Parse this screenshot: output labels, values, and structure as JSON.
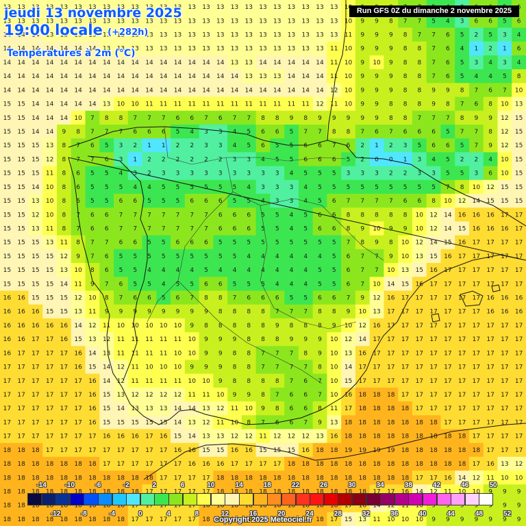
{
  "header": {
    "date": "jeudi 13 novembre 2025",
    "time": "19:00 locale",
    "offset": "(+282h)",
    "variable": "Températures à 2m (°C)",
    "run": "Run GFS 0Z du dimanche 2 novembre 2025"
  },
  "footer": {
    "copyright": "Copyright 2025 Meteociel.fr"
  },
  "legend": {
    "unit": "°C",
    "labels_top": [
      "-14",
      "-10",
      "-6",
      "-2",
      "2",
      "6",
      "10",
      "14",
      "18",
      "22",
      "26",
      "30",
      "34",
      "38",
      "42",
      "46",
      "50"
    ],
    "labels_bottom": [
      "-12",
      "-8",
      "-4",
      "0",
      "4",
      "8",
      "12",
      "16",
      "20",
      "24",
      "28",
      "32",
      "36",
      "40",
      "44",
      "48",
      "52"
    ],
    "colors": [
      "#0a0a40",
      "#0a1f6e",
      "#0a3296",
      "#0000c8",
      "#0050ff",
      "#0a8cff",
      "#1ec8ff",
      "#50e6ff",
      "#50f0a0",
      "#3ce650",
      "#8ce61e",
      "#c8f01e",
      "#ffff50",
      "#ffff96",
      "#fff5b4",
      "#ffdc32",
      "#ffb41e",
      "#ff8c1e",
      "#ff641e",
      "#ff321e",
      "#ff1414",
      "#e60000",
      "#b40000",
      "#8c0014",
      "#780032",
      "#960064",
      "#b4008c",
      "#d200b4",
      "#f01edc",
      "#ff64f0",
      "#ffa0ff",
      "#ffd2ff",
      "#ffffff"
    ]
  },
  "map": {
    "region": "Péninsule Ibérique",
    "value_grid": [
      "13 13 13 13 13 13 13 13 13 13 13 13 13 13 13 13 13 13 13 13 13 13 13 13 10 9 9 8 7 7 5 4 3 6 6 5 6",
      "13 13 13 13 13 13 13 13 13 13 13 13 13 13 13 13 13 13 13 13 13 13 13 13 10 9 9 8 7 7 5 4 3 6 6 5 6",
      "14 14 14 13 13 13 13 13 13 13 13 13 13 13 13 13 13 13 13 13 13 13 13 13 11 9 9 9 8 7 7 6 5 2 5 3 4",
      "14 14 14 14 14 14 14 13 13 13 13 13 13 13 13 13 13 13 13 13 13 13 13 11 10 9 9 9 8 8 7 6 4 1 2 1 6",
      "14 14 14 14 14 14 14 14 14 14 14 14 14 14 14 14 13 13 14 14 14 14 14 11 10 9 10 9 8 8 7 6 5 3 4 3 4",
      "14 14 14 14 14 14 14 14 14 14 14 14 14 14 14 14 14 13 13 13 14 14 14 11 10 9 9 9 8 8 7 6 5 4 4 5 8",
      "14 14 14 14 14 14 14 14 14 14 14 14 14 14 14 14 14 14 14 14 14 14 14 12 10 9 9 9 8 8 9 9 8 7 6 7 10",
      "15 15 14 14 14 14 14 13 10 10 11 11 11 11 11 11 11 11 11 11 11 11 12 11 10 9 9 8 8 8 9 8 7 6 8 10 13",
      "15 15 14 14 14 10 7 8 8 7 7 7 6 6 7 6 7 7 8 8 9 8 9 9 9 9 9 8 8 7 7 7 8 9 9 12 15",
      "15 15 14 14 9 8 7 7 7 6 6 6 5 4 3 3 4 5 6 6 5 7 7 8 8 7 6 7 6 6 6 5 7 7 8 12 15",
      "15 15 15 13 8 7 6 5 3 2 1 1 2 2 3 3 4 5 6 5 5 6 6 7 6 2 1 2 3 5 6 6 5 7 9 12 15",
      "15 15 15 12 8 7 7 6 3 1 2 2 2 2 2 2 3 3 4 5 5 6 6 6 5 2 0 0 1 3 4 5 2 2 4 10 15",
      "15 15 15 11 8 6 5 5 4 3 2 3 3 3 3 3 3 3 3 3 4 5 5 5 3 3 3 2 2 3 3 5 5 3 6 10 15",
      "15 15 14 10 8 6 5 5 5 4 4 5 5 5 5 5 5 4 3 3 3 4 5 5 5 5 5 5 5 5 5 7 8 10 12 15 15",
      "15 15 13 10 8 6 5 5 6 6 5 5 5 6 6 6 5 5 4 3 3 4 5 6 7 7 7 7 6 6 8 10 12 14 15 15 15",
      "15 15 12 10 8 7 6 6 7 7 7 7 7 7 7 6 6 6 5 5 4 5 6 6 8 8 8 8 8 10 12 14 16 16 16 17 17",
      "15 15 13 11 8 7 6 6 7 7 7 7 7 7 7 6 6 6 5 5 4 5 6 6 8 9 10 9 9 10 12 14 15 16 16 16 17",
      "15 15 15 13 11 8 7 7 6 6 5 5 6 6 6 5 5 5 5 5 5 5 5 5 7 8 9 8 10 12 14 15 16 17 17 17 17",
      "15 15 15 15 12 9 7 6 5 5 5 5 5 5 5 5 5 4 4 4 4 4 4 5 6 7 7 9 10 13 15 16 17 17 17 17 17",
      "15 15 15 15 13 10 8 6 5 5 4 4 4 4 5 4 4 4 4 4 4 4 5 5 6 7 7 10 13 15 16 17 17 17 17 17 17",
      "15 15 15 15 14 11 9 7 6 5 5 4 5 5 6 6 5 5 5 4 4 4 5 5 6 7 10 14 15 16 17 17 17 17 17 17 17",
      "16 16 15 15 15 12 10 8 7 6 6 5 6 7 8 8 7 6 6 6 5 5 6 6 7 9 12 16 17 17 17 17 17 17 16 16 16",
      "16 16 16 15 15 13 11 9 9 9 9 9 9 9 9 8 8 8 8 7 7 7 8 8 9 10 13 17 17 17 17 17 17 17 16 16 16",
      "16 16 16 16 16 14 12 11 10 10 10 10 10 9 8 8 8 8 8 9 8 8 8 9 10 12 16 17 17 17 17 17 17 17 17 17 17",
      "16 16 17 17 16 15 13 12 11 11 11 11 11 10 9 9 9 8 8 8 9 9 9 10 12 14 17 17 17 17 17 17 17 17 17 17 17",
      "16 17 17 17 17 16 14 13 11 11 11 11 10 10 9 9 8 8 7 7 7 8 9 10 13 16 17 17 17 17 17 17 17 17 17 17 17",
      "17 17 17 17 17 16 15 14 12 11 10 10 10 9 9 9 8 8 7 7 7 7 8 10 14 17 17 17 17 17 17 17 17 17 17 17 17",
      "17 17 17 17 17 17 16 14 12 11 11 11 11 10 10 9 8 8 8 8 7 6 7 10 15 17 17 17 17 17 17 17 17 17 17 17 17",
      "17 17 17 17 17 17 16 15 13 12 12 12 12 11 11 10 9 9 8 7 6 6 7 10 16 18 18 18 17 17 17 17 17 17 17 17 17",
      "17 17 17 17 17 17 16 15 14 13 13 13 14 14 13 12 11 10 9 8 6 6 8 11 17 18 18 18 18 17 17 17 17 17 17 17 17",
      "17 17 17 17 17 17 16 15 15 15 15 15 14 13 12 11 10 8 7 6 6 7 9 13 18 18 18 18 18 18 18 17 17 17 17 17 17",
      "17 17 17 17 17 17 17 16 16 16 17 16 15 14 13 13 12 12 11 12 12 12 13 16 18 18 18 18 18 18 18 18 18 17 17 17 17",
      "18 18 18 17 17 17 17 17 17 17 17 17 16 16 15 15 16 16 15 15 15 16 18 18 19 19 19 19 18 18 18 18 18 18 17 17 17",
      "18 18 18 18 18 18 18 17 17 17 17 17 17 16 16 16 17 17 17 17 18 18 18 18 18 18 18 18 18 18 18 18 18 17 16 13 12",
      "18 18 18 18 18 18 18 18 18 18 18 17 17 17 17 18 18 18 18 18 18 18 18 18 18 18 18 18 18 17 17 16 14 12 11 10 10",
      "18 18 18 18 18 18 18 18 18 18 17 17 17 17 17 18 18 18 18 18 18 18 18 18 18 18 17 17 16 14 12 11 10 10 9 9 9",
      "18 18 18 18 18 18 18 18 18 17 17 17 17 17 18 18 18 18 18 18 18 18 18 18 17 16 14 12 11 10 9 9 9 9 9 9 9",
      "18 18 18 18 18 18 18 18 18 17 17 17 17 17 18 18 18 18 18 18 18 18 18 17 15 13 11 10 10 10 9 9 9 9 9 9 9"
    ]
  }
}
